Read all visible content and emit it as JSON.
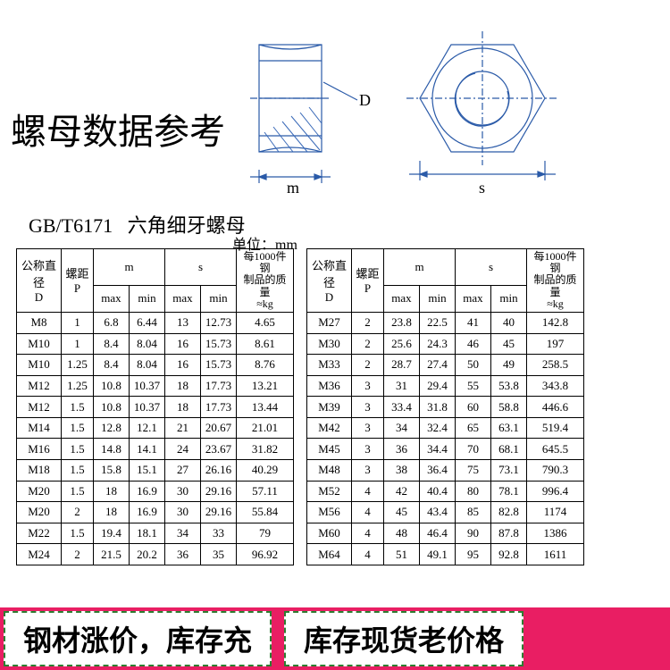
{
  "title": "螺母数据参考",
  "spec_code": "GB/T6171",
  "spec_name": "六角细牙螺母",
  "unit_label": "单位：mm",
  "diagram": {
    "dim_m": "m",
    "dim_s": "s",
    "dim_d": "D",
    "linecolor": "#2a5aa8",
    "hatchcolor": "#3a6ab8"
  },
  "headers": {
    "d": "公称直径\nD",
    "p": "螺距\nP",
    "m": "m",
    "s": "s",
    "kg": "每1000件钢\n制品的质量\n≈kg",
    "max": "max",
    "min": "min"
  },
  "table_left": [
    [
      "M8",
      "1",
      "6.8",
      "6.44",
      "13",
      "12.73",
      "4.65"
    ],
    [
      "M10",
      "1",
      "8.4",
      "8.04",
      "16",
      "15.73",
      "8.61"
    ],
    [
      "M10",
      "1.25",
      "8.4",
      "8.04",
      "16",
      "15.73",
      "8.76"
    ],
    [
      "M12",
      "1.25",
      "10.8",
      "10.37",
      "18",
      "17.73",
      "13.21"
    ],
    [
      "M12",
      "1.5",
      "10.8",
      "10.37",
      "18",
      "17.73",
      "13.44"
    ],
    [
      "M14",
      "1.5",
      "12.8",
      "12.1",
      "21",
      "20.67",
      "21.01"
    ],
    [
      "M16",
      "1.5",
      "14.8",
      "14.1",
      "24",
      "23.67",
      "31.82"
    ],
    [
      "M18",
      "1.5",
      "15.8",
      "15.1",
      "27",
      "26.16",
      "40.29"
    ],
    [
      "M20",
      "1.5",
      "18",
      "16.9",
      "30",
      "29.16",
      "57.11"
    ],
    [
      "M20",
      "2",
      "18",
      "16.9",
      "30",
      "29.16",
      "55.84"
    ],
    [
      "M22",
      "1.5",
      "19.4",
      "18.1",
      "34",
      "33",
      "79"
    ],
    [
      "M24",
      "2",
      "21.5",
      "20.2",
      "36",
      "35",
      "96.92"
    ]
  ],
  "table_right": [
    [
      "M27",
      "2",
      "23.8",
      "22.5",
      "41",
      "40",
      "142.8"
    ],
    [
      "M30",
      "2",
      "25.6",
      "24.3",
      "46",
      "45",
      "197"
    ],
    [
      "M33",
      "2",
      "28.7",
      "27.4",
      "50",
      "49",
      "258.5"
    ],
    [
      "M36",
      "3",
      "31",
      "29.4",
      "55",
      "53.8",
      "343.8"
    ],
    [
      "M39",
      "3",
      "33.4",
      "31.8",
      "60",
      "58.8",
      "446.6"
    ],
    [
      "M42",
      "3",
      "34",
      "32.4",
      "65",
      "63.1",
      "519.4"
    ],
    [
      "M45",
      "3",
      "36",
      "34.4",
      "70",
      "68.1",
      "645.5"
    ],
    [
      "M48",
      "3",
      "38",
      "36.4",
      "75",
      "73.1",
      "790.3"
    ],
    [
      "M52",
      "4",
      "42",
      "40.4",
      "80",
      "78.1",
      "996.4"
    ],
    [
      "M56",
      "4",
      "45",
      "43.4",
      "85",
      "82.8",
      "1174"
    ],
    [
      "M60",
      "4",
      "48",
      "46.4",
      "90",
      "87.8",
      "1386"
    ],
    [
      "M64",
      "4",
      "51",
      "49.1",
      "95",
      "92.8",
      "1611"
    ]
  ],
  "promo": {
    "left": "钢材涨价，库存充",
    "right": "库存现货老价格"
  }
}
